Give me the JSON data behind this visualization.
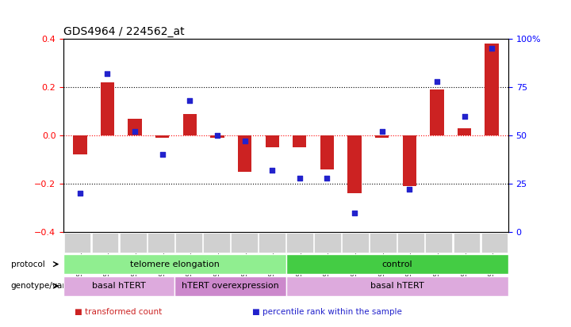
{
  "title": "GDS4964 / 224562_at",
  "samples": [
    "GSM1019110",
    "GSM1019111",
    "GSM1019112",
    "GSM1019113",
    "GSM1019102",
    "GSM1019103",
    "GSM1019104",
    "GSM1019105",
    "GSM1019098",
    "GSM1019099",
    "GSM1019100",
    "GSM1019101",
    "GSM1019106",
    "GSM1019107",
    "GSM1019108",
    "GSM1019109"
  ],
  "bar_values": [
    -0.08,
    0.22,
    0.07,
    -0.01,
    0.09,
    -0.01,
    -0.15,
    -0.05,
    -0.05,
    -0.14,
    -0.24,
    -0.01,
    -0.21,
    0.19,
    0.03,
    0.38
  ],
  "dot_values": [
    20,
    82,
    52,
    40,
    68,
    50,
    47,
    32,
    28,
    28,
    10,
    52,
    22,
    78,
    60,
    95
  ],
  "ylim": [
    -0.4,
    0.4
  ],
  "y2lim": [
    0,
    100
  ],
  "yticks": [
    -0.4,
    -0.2,
    0,
    0.2,
    0.4
  ],
  "y2ticks": [
    0,
    25,
    50,
    75,
    100
  ],
  "bar_color": "#cc2222",
  "dot_color": "#2222cc",
  "protocol_groups": [
    {
      "label": "telomere elongation",
      "start": 0,
      "end": 8,
      "color": "#90ee90"
    },
    {
      "label": "control",
      "start": 8,
      "end": 16,
      "color": "#44cc44"
    }
  ],
  "genotype_groups": [
    {
      "label": "basal hTERT",
      "start": 0,
      "end": 4,
      "color": "#ddaadd"
    },
    {
      "label": "hTERT overexpression",
      "start": 4,
      "end": 8,
      "color": "#cc88cc"
    },
    {
      "label": "basal hTERT",
      "start": 8,
      "end": 16,
      "color": "#ddaadd"
    }
  ],
  "legend_items": [
    {
      "color": "#cc2222",
      "label": "transformed count"
    },
    {
      "color": "#2222cc",
      "label": "percentile rank within the sample"
    }
  ],
  "protocol_label": "protocol",
  "genotype_label": "genotype/variation",
  "tick_bg_color": "#d0d0d0"
}
